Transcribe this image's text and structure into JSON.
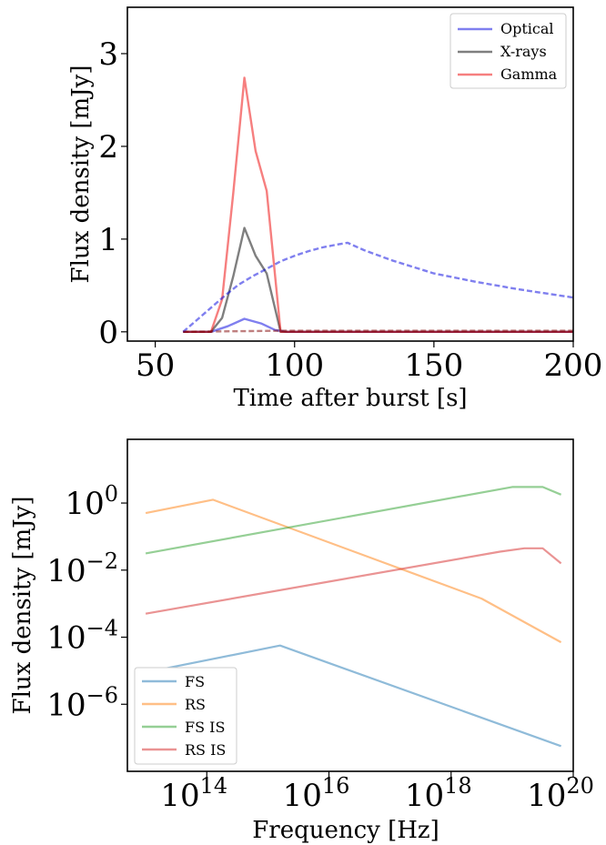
{
  "chart_data": [
    {
      "type": "line",
      "xlabel": "Time after burst [s]",
      "ylabel": "Flux density [mJy]",
      "xlim": [
        40,
        200
      ],
      "ylim": [
        -0.1,
        3.5
      ],
      "xticks": [
        "50",
        "100",
        "150",
        "200"
      ],
      "yticks": [
        "0",
        "1",
        "2",
        "3"
      ],
      "legend_position": "top-right",
      "legend": [
        "Optical",
        "X-rays",
        "Gamma"
      ],
      "series": [
        {
          "name": "Optical",
          "color": "#0000e0",
          "style": "solid",
          "x": [
            60,
            70,
            76,
            82,
            88,
            93,
            97,
            200
          ],
          "y": [
            0,
            0,
            0.06,
            0.14,
            0.09,
            0.02,
            0,
            0
          ]
        },
        {
          "name": "X-rays",
          "color": "#000000",
          "style": "solid",
          "x": [
            60,
            70,
            74,
            78,
            82,
            86,
            90,
            95,
            200
          ],
          "y": [
            0,
            0,
            0.15,
            0.6,
            1.12,
            0.82,
            0.63,
            0,
            0
          ]
        },
        {
          "name": "Gamma",
          "color": "#ee0000",
          "style": "solid",
          "x": [
            60,
            70,
            74,
            78,
            82,
            86,
            90,
            95,
            200
          ],
          "y": [
            0,
            0,
            0.35,
            1.5,
            2.74,
            1.95,
            1.52,
            0,
            0
          ]
        },
        {
          "name": "",
          "color": "#0000e0",
          "style": "dashed",
          "x": [
            60,
            65,
            70,
            75,
            80,
            85,
            90,
            95,
            100,
            105,
            110,
            115,
            119,
            125,
            135,
            150,
            165,
            180,
            200
          ],
          "y": [
            0,
            0.13,
            0.26,
            0.39,
            0.51,
            0.6,
            0.68,
            0.76,
            0.82,
            0.87,
            0.91,
            0.94,
            0.96,
            0.88,
            0.77,
            0.63,
            0.54,
            0.46,
            0.37
          ]
        },
        {
          "name": "",
          "color": "#800000",
          "style": "dashed",
          "x": [
            60,
            95,
            200
          ],
          "y": [
            0,
            0.012,
            0.012
          ]
        }
      ]
    },
    {
      "type": "line",
      "xscale": "log",
      "yscale": "log",
      "xlabel": "Frequency [Hz]",
      "ylabel": "Flux density [mJy]",
      "xlim_log10": [
        12.7,
        20
      ],
      "ylim_log10": [
        -8,
        1.9
      ],
      "xtick_exponents": [
        "14",
        "16",
        "18",
        "20"
      ],
      "ytick_exponents": [
        "0",
        "−2",
        "−4",
        "−6"
      ],
      "tick_base": "10",
      "legend_position": "bottom-left",
      "legend": [
        "FS",
        "RS",
        "FS IS",
        "RS IS"
      ],
      "series": [
        {
          "name": "FS",
          "color": "#1f77b4",
          "log10_x": [
            13,
            15.2,
            19.8
          ],
          "log10_y": [
            -5.05,
            -4.25,
            -7.25
          ]
        },
        {
          "name": "RS",
          "color": "#ff7f0e",
          "log10_x": [
            13,
            14.1,
            18.5,
            19.8
          ],
          "log10_y": [
            -0.3,
            0.1,
            -2.85,
            -4.15
          ]
        },
        {
          "name": "FS IS",
          "color": "#2ca02c",
          "log10_x": [
            13,
            19,
            19.5,
            19.8
          ],
          "log10_y": [
            -1.5,
            0.48,
            0.48,
            0.25
          ]
        },
        {
          "name": "RS IS",
          "color": "#d62728",
          "log10_x": [
            13,
            18.8,
            19.2,
            19.5,
            19.8
          ],
          "log10_y": [
            -3.3,
            -1.45,
            -1.35,
            -1.35,
            -1.8
          ]
        }
      ]
    }
  ]
}
